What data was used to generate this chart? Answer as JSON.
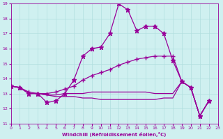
{
  "xlabel": "Windchill (Refroidissement éolien,°C)",
  "xlim": [
    0,
    23
  ],
  "ylim": [
    11,
    19
  ],
  "yticks": [
    11,
    12,
    13,
    14,
    15,
    16,
    17,
    18,
    19
  ],
  "xticks": [
    0,
    1,
    2,
    3,
    4,
    5,
    6,
    7,
    8,
    9,
    10,
    11,
    12,
    13,
    14,
    15,
    16,
    17,
    18,
    19,
    20,
    21,
    22,
    23
  ],
  "bg_color": "#cff0f0",
  "grid_color": "#b0dede",
  "line_color": "#990099",
  "series": [
    {
      "y": [
        13.5,
        13.4,
        13.0,
        13.0,
        12.4,
        12.5,
        13.0,
        13.9,
        15.5,
        16.0,
        16.1,
        17.0,
        19.0,
        18.6,
        17.2,
        17.5,
        17.5,
        17.0,
        15.2,
        13.8,
        13.4,
        11.5,
        12.5
      ],
      "marker": "*",
      "markersize": 5
    },
    {
      "y": [
        13.5,
        13.4,
        13.1,
        13.0,
        13.0,
        13.1,
        13.3,
        13.5,
        13.9,
        14.2,
        14.4,
        14.6,
        14.9,
        15.1,
        15.3,
        15.4,
        15.5,
        15.5,
        15.5,
        13.8,
        13.4,
        11.5,
        12.5
      ],
      "marker": "+",
      "markersize": 5
    },
    {
      "y": [
        13.5,
        13.4,
        13.0,
        13.0,
        12.9,
        12.9,
        13.0,
        13.0,
        13.0,
        13.1,
        13.1,
        13.1,
        13.1,
        13.1,
        13.1,
        13.1,
        13.0,
        13.0,
        13.0,
        13.8,
        13.4,
        11.5,
        12.5
      ],
      "marker": null,
      "markersize": 0
    },
    {
      "y": [
        13.5,
        13.4,
        13.0,
        13.0,
        12.9,
        12.8,
        12.8,
        12.8,
        12.7,
        12.7,
        12.6,
        12.6,
        12.6,
        12.6,
        12.6,
        12.6,
        12.6,
        12.7,
        12.7,
        13.8,
        13.4,
        11.5,
        12.5
      ],
      "marker": null,
      "markersize": 0
    }
  ]
}
